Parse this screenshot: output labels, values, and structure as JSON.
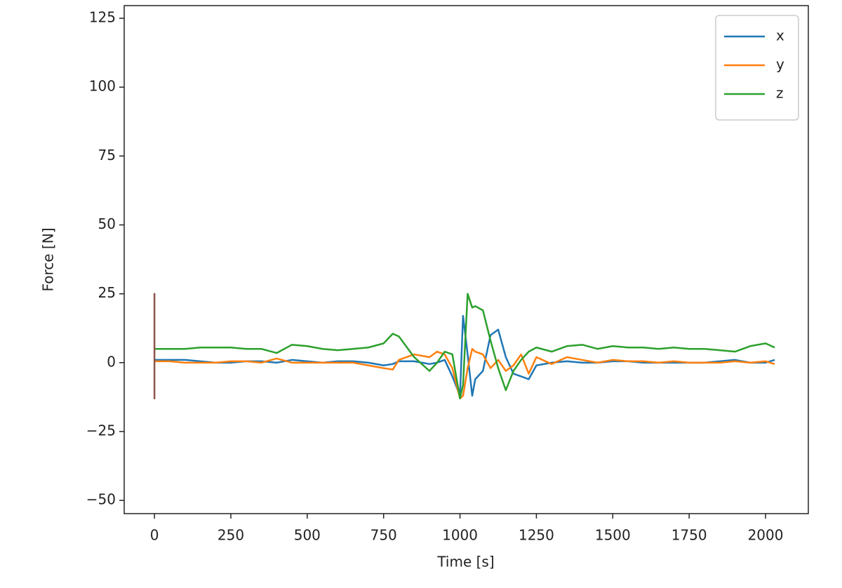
{
  "chart_data": {
    "type": "line",
    "x_label": "Time [s]",
    "y_label": "Force [N]",
    "x": [
      0,
      50,
      100,
      150,
      200,
      250,
      300,
      350,
      400,
      450,
      500,
      550,
      600,
      650,
      700,
      750,
      780,
      800,
      850,
      900,
      925,
      950,
      975,
      1000,
      1010,
      1025,
      1040,
      1050,
      1075,
      1100,
      1125,
      1150,
      1175,
      1200,
      1225,
      1250,
      1300,
      1350,
      1400,
      1450,
      1500,
      1550,
      1600,
      1650,
      1700,
      1750,
      1800,
      1850,
      1900,
      1950,
      2000,
      2030
    ],
    "series": [
      {
        "name": "x",
        "color": "#1f77b4",
        "values": [
          1,
          1,
          1,
          0.5,
          0,
          0,
          0.5,
          0.5,
          0,
          1,
          0.5,
          0,
          0.5,
          0.5,
          0,
          -1,
          -0.5,
          0.5,
          0.5,
          -0.5,
          0,
          1,
          -5,
          -12,
          17,
          3,
          -12,
          -6,
          -3,
          10,
          12,
          2,
          -4,
          -5,
          -6,
          -1,
          0,
          0.5,
          0,
          0,
          0.5,
          0.5,
          0,
          0,
          0,
          0,
          0,
          0.5,
          1,
          0,
          0,
          1
        ]
      },
      {
        "name": "y",
        "color": "#ff7f0e",
        "values": [
          0.5,
          0.5,
          0,
          0,
          0,
          0.5,
          0.5,
          0,
          1.5,
          0,
          0,
          0,
          0,
          0,
          -1,
          -2,
          -2.5,
          1,
          3,
          2,
          4,
          3,
          -2,
          -13,
          -12,
          -2,
          5,
          4,
          3,
          -2,
          1,
          -3,
          -1,
          3,
          -4,
          2,
          -0.5,
          2,
          1,
          0,
          1,
          0.5,
          0.5,
          0,
          0.5,
          0,
          0,
          0,
          0.5,
          0,
          0.5,
          -0.5
        ]
      },
      {
        "name": "z",
        "color": "#2ca02c",
        "values": [
          5,
          5,
          5,
          5.5,
          5.5,
          5.5,
          5,
          5,
          3.5,
          6.5,
          6,
          5,
          4.5,
          5,
          5.5,
          7,
          10.5,
          9.5,
          2,
          -3,
          0,
          4,
          3,
          -13,
          -8,
          25,
          20,
          20.5,
          19,
          8,
          -2,
          -10,
          -3,
          1,
          4,
          5.5,
          4,
          6,
          6.5,
          5,
          6,
          5.5,
          5.5,
          5,
          5.5,
          5,
          5,
          4.5,
          4,
          6,
          7,
          5.5
        ]
      },
      {
        "color": "#8c564b",
        "x": [
          0,
          0,
          0,
          0,
          0,
          0,
          0,
          0
        ],
        "values": [
          0,
          25,
          -13,
          20,
          -10,
          6,
          -5,
          1
        ]
      }
    ],
    "xlim": [
      -99,
      2140
    ],
    "ylim": [
      -54.8,
      129.6
    ],
    "xticks": [
      0,
      250,
      500,
      750,
      1000,
      1250,
      1500,
      1750,
      2000
    ],
    "yticks": [
      {
        "value": -50,
        "label": "−50"
      },
      {
        "value": -25,
        "label": "−25"
      },
      0,
      25,
      50,
      75,
      100,
      125
    ],
    "legend": "upper right"
  }
}
